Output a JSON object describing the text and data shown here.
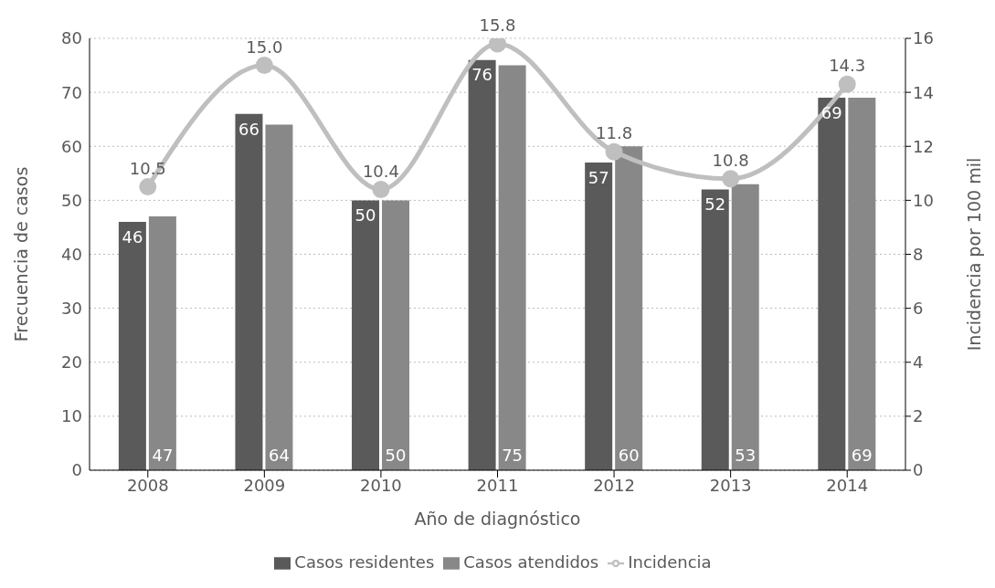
{
  "chart_data": {
    "type": "bar",
    "categories": [
      "2008",
      "2009",
      "2010",
      "2011",
      "2012",
      "2013",
      "2014"
    ],
    "series": [
      {
        "name": "Casos residentes",
        "color": "#5a5a5a",
        "values": [
          46,
          66,
          50,
          76,
          57,
          52,
          69
        ]
      },
      {
        "name": "Casos atendidos",
        "color": "#888888",
        "values": [
          47,
          64,
          50,
          75,
          60,
          53,
          69
        ]
      },
      {
        "name": "Incidencia",
        "type": "line",
        "axis": "y2",
        "color": "#bfbfbf",
        "marker": "circle",
        "values": [
          10.5,
          15.0,
          10.4,
          15.8,
          11.8,
          10.8,
          14.3
        ],
        "value_labels": [
          "10.5",
          "15.0",
          "10.4",
          "15.8",
          "11.8",
          "10.8",
          "14.3"
        ]
      }
    ],
    "data_labels": true,
    "xlabel": "Año de diagnóstico",
    "ylabel": "Frecuencia de casos",
    "y2label": "Incidencia por 100 mil",
    "ylim": [
      0,
      80
    ],
    "yticks": [
      0,
      10,
      20,
      30,
      40,
      50,
      60,
      70,
      80
    ],
    "y2lim": [
      0,
      16
    ],
    "y2ticks": [
      0,
      2,
      4,
      6,
      8,
      10,
      12,
      14,
      16
    ],
    "grid": "y",
    "legend": "bottom"
  }
}
